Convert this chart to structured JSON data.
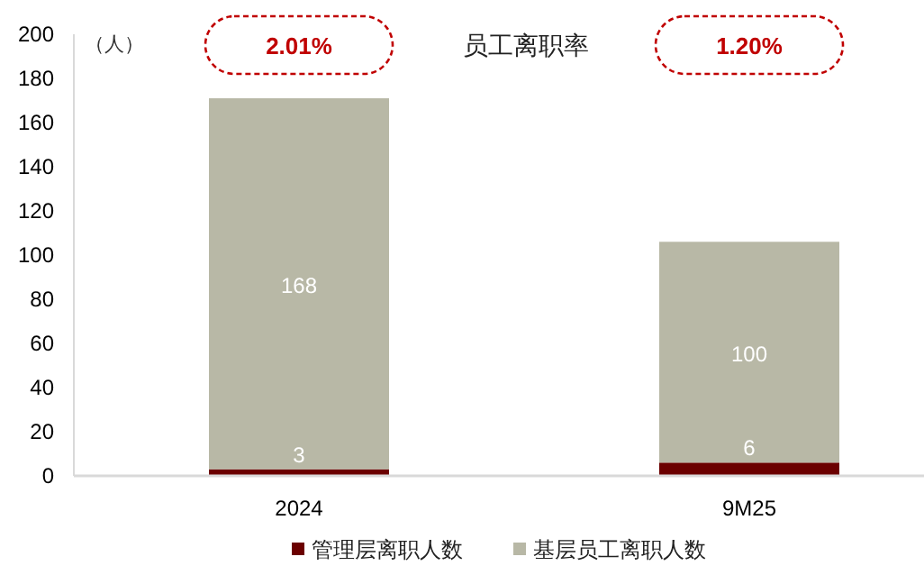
{
  "chart_data": {
    "type": "bar",
    "stacked": true,
    "ylabel": "（人）",
    "categories": [
      "2024",
      "9M25"
    ],
    "series": [
      {
        "name": "管理层离职人数",
        "color": "#6b0000",
        "values": [
          3,
          6
        ]
      },
      {
        "name": "基层员工离职人数",
        "color": "#b8b8a6",
        "values": [
          168,
          100
        ]
      }
    ],
    "ylim": [
      0,
      200
    ],
    "yticks": [
      0,
      20,
      40,
      60,
      80,
      100,
      120,
      140,
      160,
      180,
      200
    ],
    "data_labels": true,
    "legend": "bottom",
    "grid": false,
    "annotations": [
      "员工离职率",
      "2.01%",
      "1.20%"
    ]
  }
}
